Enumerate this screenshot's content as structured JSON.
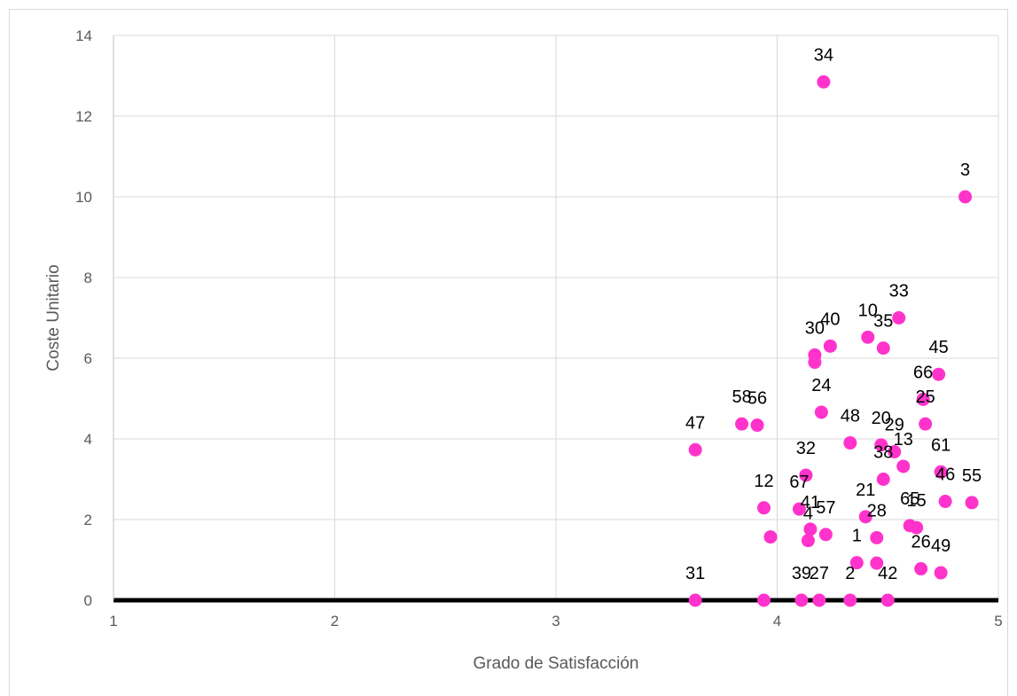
{
  "chart_data": {
    "type": "scatter",
    "title": "",
    "xlabel": "Grado de Satisfacción",
    "ylabel": "Coste Unitario",
    "xlim": [
      1,
      5
    ],
    "ylim": [
      0,
      14
    ],
    "x_ticks": [
      "1",
      "2",
      "3",
      "4",
      "5"
    ],
    "y_ticks": [
      "0",
      "2",
      "4",
      "6",
      "8",
      "10",
      "12",
      "14"
    ],
    "grid": true,
    "marker_color": "#ff33cc",
    "points": [
      {
        "label": "34",
        "x": 4.21,
        "y": 12.85
      },
      {
        "label": "3",
        "x": 4.85,
        "y": 10.0
      },
      {
        "label": "33",
        "x": 4.55,
        "y": 7.0
      },
      {
        "label": "10",
        "x": 4.41,
        "y": 6.52
      },
      {
        "label": "35",
        "x": 4.48,
        "y": 6.25
      },
      {
        "label": "40",
        "x": 4.24,
        "y": 6.3
      },
      {
        "label": "30",
        "x": 4.17,
        "y": 6.08
      },
      {
        "label": "",
        "x": 4.17,
        "y": 5.9
      },
      {
        "label": "45",
        "x": 4.73,
        "y": 5.6
      },
      {
        "label": "66",
        "x": 4.66,
        "y": 4.98
      },
      {
        "label": "24",
        "x": 4.2,
        "y": 4.66
      },
      {
        "label": "25",
        "x": 4.67,
        "y": 4.37
      },
      {
        "label": "58",
        "x": 3.84,
        "y": 4.37
      },
      {
        "label": "56",
        "x": 3.91,
        "y": 4.34
      },
      {
        "label": "47",
        "x": 3.63,
        "y": 3.73
      },
      {
        "label": "48",
        "x": 4.33,
        "y": 3.9
      },
      {
        "label": "20",
        "x": 4.47,
        "y": 3.85
      },
      {
        "label": "29",
        "x": 4.53,
        "y": 3.68
      },
      {
        "label": "13",
        "x": 4.57,
        "y": 3.32
      },
      {
        "label": "61",
        "x": 4.74,
        "y": 3.18
      },
      {
        "label": "32",
        "x": 4.13,
        "y": 3.1
      },
      {
        "label": "38",
        "x": 4.48,
        "y": 3.0
      },
      {
        "label": "55",
        "x": 4.88,
        "y": 2.42
      },
      {
        "label": "46",
        "x": 4.76,
        "y": 2.45
      },
      {
        "label": "15",
        "x": 4.63,
        "y": 1.8
      },
      {
        "label": "65",
        "x": 4.6,
        "y": 1.85
      },
      {
        "label": "67",
        "x": 4.1,
        "y": 2.26
      },
      {
        "label": "41",
        "x": 4.15,
        "y": 1.76
      },
      {
        "label": "12",
        "x": 3.94,
        "y": 2.29
      },
      {
        "label": "57",
        "x": 4.22,
        "y": 1.63
      },
      {
        "label": "4",
        "x": 4.14,
        "y": 1.48
      },
      {
        "label": "",
        "x": 3.97,
        "y": 1.57
      },
      {
        "label": "21",
        "x": 4.4,
        "y": 2.07
      },
      {
        "label": "1",
        "x": 4.36,
        "y": 0.93
      },
      {
        "label": "28",
        "x": 4.45,
        "y": 1.55
      },
      {
        "label": "26",
        "x": 4.65,
        "y": 0.78
      },
      {
        "label": "49",
        "x": 4.74,
        "y": 0.68
      },
      {
        "label": "",
        "x": 4.45,
        "y": 0.92
      },
      {
        "label": "31",
        "x": 3.63,
        "y": 0.0
      },
      {
        "label": "39",
        "x": 4.11,
        "y": 0.0
      },
      {
        "label": "27",
        "x": 4.19,
        "y": 0.0
      },
      {
        "label": "2",
        "x": 4.33,
        "y": 0.0
      },
      {
        "label": "42",
        "x": 4.5,
        "y": 0.0
      },
      {
        "label": "",
        "x": 3.94,
        "y": 0.0
      }
    ]
  }
}
